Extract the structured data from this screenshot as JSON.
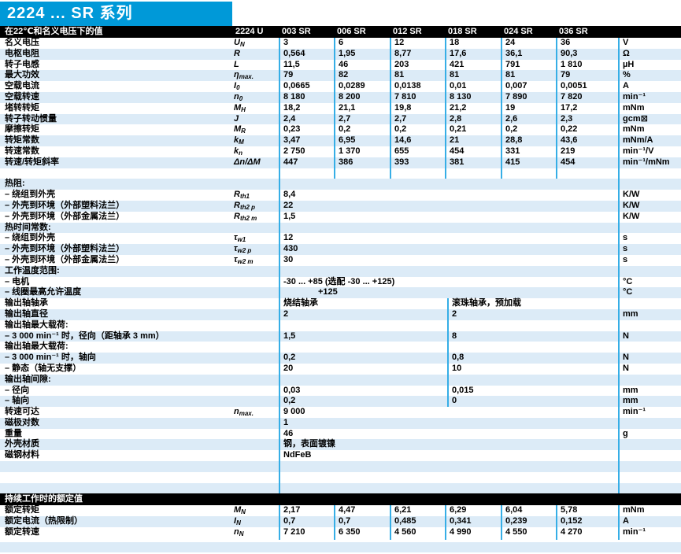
{
  "page": {
    "series_title": "2224 ... SR 系列"
  },
  "colors": {
    "accent_cyan": "#0099d8",
    "row_stripe": "#dcebf7",
    "grid_line": "#36aee6",
    "bar_black": "#000000"
  },
  "header": {
    "caption": "在22℃和名义电压下的值",
    "model": "2224 U",
    "variants": [
      "003 SR",
      "006 SR",
      "012 SR",
      "018 SR",
      "024 SR",
      "036 SR"
    ]
  },
  "main": {
    "rows": [
      {
        "label": "名义电压",
        "sym": {
          "m": "U",
          "s": "N"
        },
        "values": [
          "3",
          "6",
          "12",
          "18",
          "24",
          "36"
        ],
        "unit": "V"
      },
      {
        "label": "电枢电阻",
        "sym": {
          "m": "R",
          "s": ""
        },
        "values": [
          "0,564",
          "1,95",
          "8,77",
          "17,6",
          "36,1",
          "90,3"
        ],
        "unit": "Ω"
      },
      {
        "label": "转子电感",
        "sym": {
          "m": "L",
          "s": ""
        },
        "values": [
          "11,5",
          "46",
          "203",
          "421",
          "791",
          "1 810"
        ],
        "unit": "µH"
      },
      {
        "label": "最大功效",
        "sym": {
          "m": "η",
          "s": "max."
        },
        "values": [
          "79",
          "82",
          "81",
          "81",
          "81",
          "79"
        ],
        "unit": "%"
      },
      {
        "label": "空载电流",
        "sym": {
          "m": "I",
          "s": "0"
        },
        "values": [
          "0,0665",
          "0,0289",
          "0,0138",
          "0,01",
          "0,007",
          "0,0051"
        ],
        "unit": "A"
      },
      {
        "label": "空载转速",
        "sym": {
          "m": "n",
          "s": "0"
        },
        "values": [
          "8 180",
          "8 200",
          "7 810",
          "8 130",
          "7 890",
          "7 820"
        ],
        "unit": "min⁻¹"
      },
      {
        "label": "堵转转矩",
        "sym": {
          "m": "M",
          "s": "H"
        },
        "values": [
          "18,2",
          "21,1",
          "19,8",
          "21,2",
          "19",
          "17,2"
        ],
        "unit": "mNm"
      },
      {
        "label": "转子转动惯量",
        "sym": {
          "m": "J",
          "s": ""
        },
        "values": [
          "2,4",
          "2,7",
          "2,7",
          "2,8",
          "2,6",
          "2,3"
        ],
        "unit": "gcm⊠"
      },
      {
        "label": "摩擦转矩",
        "sym": {
          "m": "M",
          "s": "R"
        },
        "values": [
          "0,23",
          "0,2",
          "0,2",
          "0,21",
          "0,2",
          "0,22"
        ],
        "unit": "mNm"
      },
      {
        "label": "转矩常数",
        "sym": {
          "m": "k",
          "s": "M"
        },
        "values": [
          "3,47",
          "6,95",
          "14,6",
          "21",
          "28,8",
          "43,6"
        ],
        "unit": "mNm/A"
      },
      {
        "label": "转速常数",
        "sym": {
          "m": "k",
          "s": "n"
        },
        "values": [
          "2 750",
          "1 370",
          "655",
          "454",
          "331",
          "219"
        ],
        "unit": "min⁻¹/V"
      },
      {
        "label": "转速/转矩斜率",
        "sym": {
          "m": "Δn/ΔM",
          "s": ""
        },
        "values": [
          "447",
          "386",
          "393",
          "381",
          "415",
          "454"
        ],
        "unit": "min⁻¹/mNm"
      },
      {
        "label": "",
        "sym": {
          "m": "",
          "s": ""
        },
        "values": [
          "",
          "",
          "",
          "",
          "",
          ""
        ],
        "unit": ""
      }
    ]
  },
  "mid": {
    "rows": [
      {
        "label": "热阻:",
        "sym": {
          "m": "",
          "s": ""
        },
        "v1": "",
        "v2": "",
        "unit": "",
        "split": false,
        "indent": false
      },
      {
        "label": "– 绕组到外壳",
        "sym": {
          "m": "R",
          "s": "th1"
        },
        "v1": "8,4",
        "v2": "",
        "unit": "K/W",
        "split": false,
        "indent": false
      },
      {
        "label": "– 外壳到环境（外部塑料法兰）",
        "sym": {
          "m": "R",
          "s": "th2 p"
        },
        "v1": "22",
        "v2": "",
        "unit": "K/W",
        "split": false,
        "indent": false
      },
      {
        "label": "– 外壳到环境（外部金属法兰）",
        "sym": {
          "m": "R",
          "s": "th2 m"
        },
        "v1": "1,5",
        "v2": "",
        "unit": "K/W",
        "split": false,
        "indent": false
      },
      {
        "label": "热时间常数:",
        "sym": {
          "m": "",
          "s": ""
        },
        "v1": "",
        "v2": "",
        "unit": "",
        "split": false,
        "indent": false
      },
      {
        "label": "– 绕组到外壳",
        "sym": {
          "m": "τ",
          "s": "w1"
        },
        "v1": "12",
        "v2": "",
        "unit": "s",
        "split": false,
        "indent": false
      },
      {
        "label": "– 外壳到环境（外部塑料法兰）",
        "sym": {
          "m": "τ",
          "s": "w2 p"
        },
        "v1": "430",
        "v2": "",
        "unit": "s",
        "split": false,
        "indent": false
      },
      {
        "label": "– 外壳到环境（外部金属法兰）",
        "sym": {
          "m": "τ",
          "s": "w2 m"
        },
        "v1": "30",
        "v2": "",
        "unit": "s",
        "split": false,
        "indent": false
      },
      {
        "label": "工作温度范围:",
        "sym": {
          "m": "",
          "s": ""
        },
        "v1": "",
        "v2": "",
        "unit": "",
        "split": false,
        "indent": false
      },
      {
        "label": "– 电机",
        "sym": {
          "m": "",
          "s": ""
        },
        "v1": "-30 ...  +85 (选配 -30 ... +125)",
        "v2": "",
        "unit": "°C",
        "split": false,
        "indent": false
      },
      {
        "label": "– 线圈最高允许温度",
        "sym": {
          "m": "",
          "s": ""
        },
        "v1": "+125",
        "v2": "",
        "unit": "°C",
        "split": false,
        "indent": true
      },
      {
        "label": "输出轴轴承",
        "sym": {
          "m": "",
          "s": ""
        },
        "v1": "烧结轴承",
        "v2": "滚珠轴承，预加载",
        "unit": "",
        "split": true,
        "indent": false
      },
      {
        "label": "输出轴直径",
        "sym": {
          "m": "",
          "s": ""
        },
        "v1": "2",
        "v2": "2",
        "unit": "mm",
        "split": true,
        "indent": false
      },
      {
        "label": "输出轴最大载荷:",
        "sym": {
          "m": "",
          "s": ""
        },
        "v1": "",
        "v2": "",
        "unit": "",
        "split": true,
        "indent": false
      },
      {
        "label": "– 3 000 min⁻¹ 时，径向（距轴承 3 mm）",
        "sym": {
          "m": "",
          "s": ""
        },
        "v1": "1,5",
        "v2": "8",
        "unit": "N",
        "split": true,
        "indent": false
      },
      {
        "label": "输出轴最大载荷:",
        "sym": {
          "m": "",
          "s": ""
        },
        "v1": "",
        "v2": "",
        "unit": "",
        "split": true,
        "indent": false
      },
      {
        "label": "– 3 000 min⁻¹ 时，轴向",
        "sym": {
          "m": "",
          "s": ""
        },
        "v1": "0,2",
        "v2": "0,8",
        "unit": "N",
        "split": true,
        "indent": false
      },
      {
        "label": "– 静态（轴无支撑）",
        "sym": {
          "m": "",
          "s": ""
        },
        "v1": "20",
        "v2": "10",
        "unit": "N",
        "split": true,
        "indent": false
      },
      {
        "label": "输出轴间隙:",
        "sym": {
          "m": "",
          "s": ""
        },
        "v1": "",
        "v2": "",
        "unit": "",
        "split": true,
        "indent": false
      },
      {
        "label": "– 径向",
        "sym": {
          "m": "",
          "s": ""
        },
        "v1": "0,03",
        "v2": "0,015",
        "unit": "mm",
        "split": true,
        "indent": false
      },
      {
        "label": "– 轴向",
        "sym": {
          "m": "",
          "s": ""
        },
        "v1": "0,2",
        "v2": "0",
        "unit": "mm",
        "split": true,
        "indent": false
      },
      {
        "label": "转速可达",
        "sym": {
          "m": "n",
          "s": "max."
        },
        "v1": "9 000",
        "v2": "",
        "unit": "min⁻¹",
        "split": false,
        "indent": false
      },
      {
        "label": "磁极对数",
        "sym": {
          "m": "",
          "s": ""
        },
        "v1": "1",
        "v2": "",
        "unit": "",
        "split": false,
        "indent": false
      },
      {
        "label": "重量",
        "sym": {
          "m": "",
          "s": ""
        },
        "v1": "46",
        "v2": "",
        "unit": "g",
        "split": false,
        "indent": false
      },
      {
        "label": "外壳材质",
        "sym": {
          "m": "",
          "s": ""
        },
        "v1": "钢，表面镀镍",
        "v2": "",
        "unit": "",
        "split": false,
        "indent": false
      },
      {
        "label": "磁钢材料",
        "sym": {
          "m": "",
          "s": ""
        },
        "v1": "NdFeB",
        "v2": "",
        "unit": "",
        "split": false,
        "indent": false
      },
      {
        "label": "",
        "sym": {
          "m": "",
          "s": ""
        },
        "v1": "",
        "v2": "",
        "unit": "",
        "split": false,
        "indent": false
      },
      {
        "label": "",
        "sym": {
          "m": "",
          "s": ""
        },
        "v1": "",
        "v2": "",
        "unit": "",
        "split": false,
        "indent": false
      },
      {
        "label": "",
        "sym": {
          "m": "",
          "s": ""
        },
        "v1": "",
        "v2": "",
        "unit": "",
        "split": false,
        "indent": false
      }
    ]
  },
  "rated": {
    "caption": "持续工作时的额定值",
    "rows": [
      {
        "label": "额定转矩",
        "sym": {
          "m": "M",
          "s": "N"
        },
        "values": [
          "2,17",
          "4,47",
          "6,21",
          "6,29",
          "6,04",
          "5,78"
        ],
        "unit": "mNm"
      },
      {
        "label": "额定电流（热限制）",
        "sym": {
          "m": "I",
          "s": "N"
        },
        "values": [
          "0,7",
          "0,7",
          "0,485",
          "0,341",
          "0,239",
          "0,152"
        ],
        "unit": "A"
      },
      {
        "label": "额定转速",
        "sym": {
          "m": "n",
          "s": "N"
        },
        "values": [
          "7 210",
          "6 350",
          "4 560",
          "4 990",
          "4 550",
          "4 270"
        ],
        "unit": "min⁻¹"
      }
    ]
  }
}
